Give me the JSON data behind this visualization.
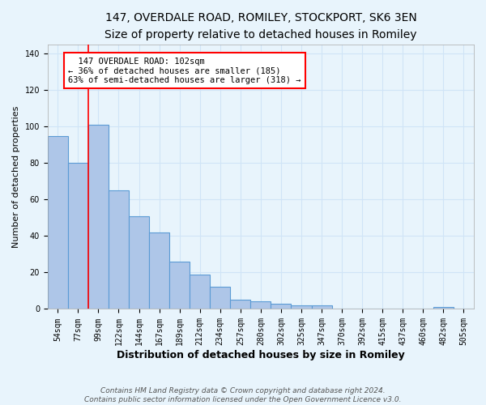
{
  "title": "147, OVERDALE ROAD, ROMILEY, STOCKPORT, SK6 3EN",
  "subtitle": "Size of property relative to detached houses in Romiley",
  "xlabel": "Distribution of detached houses by size in Romiley",
  "ylabel": "Number of detached properties",
  "categories": [
    "54sqm",
    "77sqm",
    "99sqm",
    "122sqm",
    "144sqm",
    "167sqm",
    "189sqm",
    "212sqm",
    "234sqm",
    "257sqm",
    "280sqm",
    "302sqm",
    "325sqm",
    "347sqm",
    "370sqm",
    "392sqm",
    "415sqm",
    "437sqm",
    "460sqm",
    "482sqm",
    "505sqm"
  ],
  "values": [
    95,
    80,
    101,
    65,
    51,
    42,
    26,
    19,
    12,
    5,
    4,
    3,
    2,
    2,
    0,
    0,
    0,
    0,
    0,
    1,
    0
  ],
  "bar_color": "#aec6e8",
  "bar_edge_color": "#5b9bd5",
  "grid_color": "#d0e4f7",
  "background_color": "#e8f4fc",
  "red_line_index": 2,
  "annotation_text": "  147 OVERDALE ROAD: 102sqm\n← 36% of detached houses are smaller (185)\n63% of semi-detached houses are larger (318) →",
  "annotation_box_color": "white",
  "annotation_box_edge": "red",
  "footer_line1": "Contains HM Land Registry data © Crown copyright and database right 2024.",
  "footer_line2": "Contains public sector information licensed under the Open Government Licence v3.0.",
  "ylim": [
    0,
    145
  ],
  "title_fontsize": 10,
  "subtitle_fontsize": 9,
  "xlabel_fontsize": 9,
  "ylabel_fontsize": 8,
  "tick_fontsize": 7,
  "annotation_fontsize": 7.5,
  "footer_fontsize": 6.5
}
